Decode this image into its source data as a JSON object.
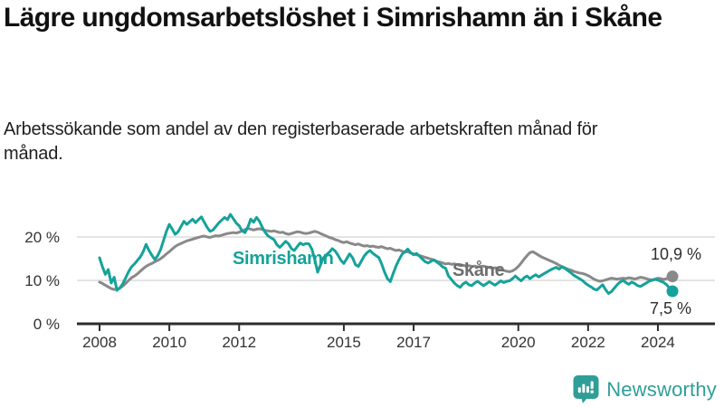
{
  "header": {
    "title": "Lägre ungdomsarbetslöshet i Simrishamn än i Skåne",
    "subtitle": "Arbetssökande som andel av den registerbaserade arbetskraften månad för månad."
  },
  "colors": {
    "simrishamn": "#15a29a",
    "skane_line": "#898989",
    "skane_label": "#6e6e6e",
    "axis": "#2d2d2d",
    "axis_text": "#333333",
    "grid": "#dcdcdc",
    "end_label": "#2e2e2e",
    "logo": "#2f9e98"
  },
  "chart_data": {
    "type": "line",
    "x_unit": "month",
    "x_start": "2008-01",
    "x_end": "2024-06",
    "x_ticks": [
      "2008",
      "2010",
      "2012",
      "2015",
      "2017",
      "2020",
      "2022",
      "2024"
    ],
    "x_tick_years": [
      2008,
      2010,
      2012,
      2015,
      2017,
      2020,
      2022,
      2024
    ],
    "y_ticks": [
      "20 %",
      "10 %",
      "0 %"
    ],
    "y_tick_values": [
      20,
      10,
      0
    ],
    "ylim": [
      0,
      27
    ],
    "grid": "horizontal",
    "series": [
      {
        "name": "Simrishamn",
        "color": "#15a29a",
        "end_label": "7,5 %",
        "end_value": 7.5,
        "values": [
          15.2,
          13.1,
          11.4,
          12.5,
          9.4,
          10.7,
          7.7,
          8.3,
          9.2,
          10.6,
          12.0,
          13.1,
          13.8,
          14.6,
          15.4,
          16.6,
          18.3,
          16.9,
          15.8,
          14.8,
          15.7,
          17.1,
          19.2,
          21.3,
          22.9,
          21.8,
          20.6,
          21.2,
          22.4,
          23.6,
          22.9,
          23.5,
          24.1,
          23.3,
          24.0,
          24.6,
          23.4,
          22.2,
          21.3,
          21.6,
          22.4,
          23.2,
          23.9,
          24.5,
          24.0,
          25.2,
          24.2,
          23.2,
          22.6,
          21.4,
          21.0,
          22.3,
          24.1,
          23.4,
          24.5,
          23.6,
          22.2,
          21.0,
          20.2,
          19.8,
          19.4,
          18.2,
          17.6,
          18.3,
          19.0,
          18.4,
          17.3,
          16.9,
          17.8,
          18.6,
          18.2,
          18.5,
          18.4,
          17.2,
          14.8,
          11.9,
          13.6,
          15.2,
          15.9,
          16.5,
          17.3,
          16.8,
          15.8,
          14.6,
          13.9,
          15.0,
          16.1,
          15.2,
          13.6,
          13.2,
          14.4,
          15.6,
          16.4,
          16.9,
          16.2,
          15.7,
          15.3,
          13.8,
          11.9,
          10.4,
          9.7,
          11.6,
          13.4,
          14.8,
          16.0,
          16.6,
          17.2,
          16.4,
          15.9,
          16.2,
          15.6,
          14.9,
          14.3,
          14.0,
          14.4,
          14.7,
          14.2,
          13.7,
          13.1,
          12.8,
          11.0,
          10.2,
          9.4,
          8.8,
          8.4,
          9.2,
          9.6,
          9.0,
          8.8,
          9.4,
          9.8,
          9.3,
          8.8,
          9.2,
          9.7,
          9.3,
          8.9,
          9.4,
          9.9,
          9.5,
          9.8,
          9.9,
          10.4,
          11.0,
          10.4,
          9.9,
          10.6,
          11.0,
          10.4,
          10.9,
          11.3,
          10.8,
          11.2,
          11.6,
          12.0,
          12.4,
          12.7,
          13.0,
          12.6,
          13.1,
          12.8,
          12.3,
          11.8,
          11.2,
          10.8,
          10.4,
          10.0,
          9.4,
          8.9,
          8.5,
          8.0,
          7.8,
          8.4,
          9.0,
          7.9,
          7.0,
          7.4,
          8.2,
          9.0,
          9.6,
          10.0,
          9.5,
          9.1,
          9.6,
          9.3,
          8.8,
          8.6,
          9.0,
          9.4,
          9.8,
          10.0,
          10.2,
          10.1,
          9.8,
          9.5,
          9.0,
          8.2,
          7.5
        ]
      },
      {
        "name": "Skåne",
        "color": "#898989",
        "end_label": "10,9 %",
        "end_value": 10.9,
        "values": [
          9.6,
          9.3,
          8.9,
          8.5,
          8.1,
          7.9,
          8.0,
          8.2,
          8.7,
          9.3,
          10.0,
          10.6,
          11.0,
          11.5,
          12.1,
          12.7,
          13.2,
          13.6,
          13.9,
          14.3,
          14.6,
          15.0,
          15.5,
          16.1,
          16.6,
          17.2,
          17.8,
          18.2,
          18.5,
          18.8,
          19.1,
          19.3,
          19.5,
          19.7,
          19.9,
          20.1,
          20.2,
          20.0,
          19.9,
          20.1,
          20.3,
          20.2,
          20.4,
          20.6,
          20.8,
          20.9,
          21.0,
          20.9,
          21.1,
          21.4,
          21.7,
          22.0,
          21.8,
          21.6,
          21.8,
          21.9,
          21.7,
          21.5,
          21.4,
          21.3,
          21.4,
          21.2,
          21.0,
          21.1,
          20.8,
          20.6,
          20.8,
          21.0,
          21.2,
          21.1,
          20.9,
          20.8,
          20.9,
          21.1,
          21.3,
          21.1,
          20.8,
          20.5,
          20.2,
          19.9,
          19.7,
          19.4,
          19.2,
          18.9,
          18.7,
          18.9,
          18.6,
          18.4,
          18.2,
          18.4,
          18.1,
          17.9,
          18.0,
          17.8,
          17.9,
          17.7,
          17.6,
          17.8,
          17.5,
          17.3,
          17.4,
          17.1,
          16.9,
          17.0,
          16.7,
          16.5,
          16.6,
          16.3,
          16.1,
          15.9,
          15.7,
          15.5,
          15.3,
          15.1,
          14.9,
          14.7,
          14.4,
          14.2,
          14.0,
          13.8,
          13.9,
          13.7,
          13.8,
          13.6,
          13.4,
          13.5,
          13.3,
          13.4,
          13.2,
          13.3,
          13.1,
          13.2,
          13.3,
          13.1,
          13.0,
          12.8,
          12.9,
          12.7,
          12.5,
          12.3,
          12.1,
          12.0,
          12.2,
          12.6,
          13.2,
          14.0,
          14.9,
          15.7,
          16.4,
          16.6,
          16.2,
          15.8,
          15.4,
          15.1,
          14.8,
          14.5,
          14.2,
          13.9,
          13.5,
          13.2,
          12.9,
          12.6,
          12.4,
          12.1,
          11.9,
          11.7,
          11.6,
          11.4,
          11.1,
          10.7,
          10.3,
          10.0,
          9.8,
          9.9,
          10.1,
          10.3,
          10.5,
          10.4,
          10.3,
          10.4,
          10.5,
          10.4,
          10.6,
          10.5,
          10.3,
          10.5,
          10.7,
          10.6,
          10.4,
          10.2,
          10.1,
          10.3,
          10.5,
          10.4,
          10.2,
          10.4,
          10.6,
          10.9
        ]
      }
    ]
  },
  "logo": {
    "text": "Newsworthy"
  }
}
